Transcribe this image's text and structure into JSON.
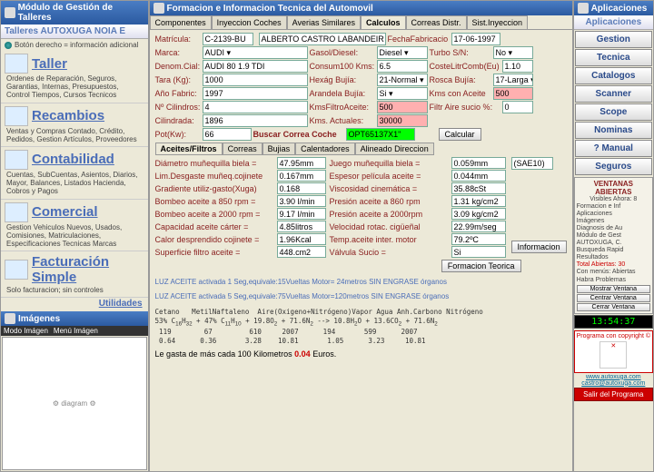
{
  "left": {
    "title": "Módulo de Gestión de Talleres",
    "subhead": "Talleres AUTOXUGA NOIA E",
    "infoLine": "Botón derecho = información adicional",
    "sections": [
      {
        "title": "Taller",
        "desc": "Ordenes de Reparación, Seguros, Garantias, Internas, Presupuestos, Control Tiempos, Cursos Tecnicos"
      },
      {
        "title": "Recambios",
        "desc": "Ventas y Compras Contado, Crédito, Pedidos, Gestion Artículos, Proveedores"
      },
      {
        "title": "Contabilidad",
        "desc": "Cuentas, SubCuentas, Asientos, Diarios, Mayor, Balances, Listados Hacienda, Cobros y Pagos"
      },
      {
        "title": "Comercial",
        "desc": "Gestion Vehiculos Nuevos, Usados, Comisiones, Matriculaciones, Especificaciones Tecnicas Marcas"
      },
      {
        "title": "Facturación Simple",
        "desc": "Solo facturacion; sin controles"
      }
    ],
    "utilidades": "Utilidades",
    "imagenesTitle": "Imágenes",
    "modoImagen": "Modo Imágen",
    "menuImagen": "Menú Imágen"
  },
  "center": {
    "title": "Formacion e Informacion Tecnica del Automovil",
    "tabs": [
      "Componentes",
      "Inyeccion Coches",
      "Averias Similares",
      "Calculos",
      "Correas Distr.",
      "Sist.Inyeccion"
    ],
    "activeTab": 3,
    "fields": {
      "matricula_l": "Matrícula:",
      "matricula": "C-2139-BU",
      "owner": "ALBERTO CASTRO LABANDEIR",
      "fechaFab_l": "FechaFabricacio",
      "fechaFab": "17-06-1997",
      "marca_l": "Marca:",
      "marca": "AUDI",
      "gasol_l": "Gasol/Diesel:",
      "gasol": "Diesel",
      "turbo_l": "Turbo S/N:",
      "turbo": "No",
      "denom_l": "Denom.Cial:",
      "denom": "AUDI 80 1.9 TDI",
      "consum_l": "Consum100 Kms:",
      "consum": "6.5",
      "coste_l": "CosteLitrComb(Eu)",
      "coste": "1.10",
      "tara_l": "Tara (Kg):",
      "tara": "1000",
      "hexag_l": "Hexág Bujía:",
      "hexag": "21-Normal",
      "rosca_l": "Rosca Bujía:",
      "rosca": "17-Larga",
      "ano_l": "Año Fabric:",
      "ano": "1997",
      "arand_l": "Arandela Bujía:",
      "arand": "Si",
      "kmsAc_l": "Kms con Aceite",
      "kmsAc": "500",
      "ncil_l": "Nº Cilindros:",
      "ncil": "4",
      "kmsFilt_l": "KmsFiltroAceite:",
      "kmsFilt": "500",
      "filtAire_l": "Filtr Aire sucio %:",
      "filtAire": "0",
      "cilind_l": "Cilindrada:",
      "cilind": "1896",
      "kmsAct_l": "Kms. Actuales:",
      "kmsAct": "30000",
      "pot_l": "Pot(Kw):",
      "pot": "66",
      "buscar_l": "Buscar Correa Coche",
      "buscar": "OPT65137X1\"",
      "calcular": "Calcular"
    },
    "subTabs": [
      "Aceites/Filtros",
      "Correas",
      "Bujias",
      "Calentadores",
      "Alineado Direccion"
    ],
    "calc": [
      [
        "Diámetro muñequilla biela =",
        "47.95mm",
        "Juego muñequilla biela =",
        "0.059mm"
      ],
      [
        "Lim.Desgaste muñeq.cojinete",
        "0.167mm",
        "Espesor película aceite =",
        "0.044mm"
      ],
      [
        "Gradiente utiliz-gasto(Xuga)",
        "0.168",
        "Viscosidad cinemática =",
        "35.88cSt"
      ],
      [
        "Bombeo aceite a 850 rpm =",
        "3.90 l/min",
        "Presión aceite a 860 rpm",
        "1.31 kg/cm2"
      ],
      [
        "Bombeo aceite a 2000 rpm =",
        "9.17 l/min",
        "Presión aceite a 2000rpm",
        "3.09 kg/cm2"
      ],
      [
        "Capacidad aceite cárter =",
        "4.85litros",
        "Velocidad rotac. cigüeñal",
        "22.99m/seg"
      ],
      [
        "Calor desprendido cojinete =",
        "1.96Kcal",
        "Temp.aceite inter. motor",
        "79.2ºC"
      ],
      [
        "Superficie filtro aceite =",
        "448.cm2",
        "Válvula Sucio =",
        "Si"
      ]
    ],
    "sae": "(SAE10)",
    "informacion": "Informacion",
    "formTeorica": "Formacion Teorica",
    "note1": "LUZ ACEITE activada 1 Seg,equivale:15Vueltas Motor= 24metros SIN ENGRASE órganos",
    "note2": "LUZ ACEITE activada 5 Seg,equivale:75Vueltas Motor=120metros SIN ENGRASE órganos",
    "gastoLine": "Le gasta de más cada 100 Kilometros",
    "gastoVal": "0.04",
    "gastoUnit": "Euros."
  },
  "right": {
    "title": "Aplicaciones",
    "subhead": "Aplicaciones",
    "btns": [
      "Gestion",
      "Tecnica",
      "Catalogos",
      "Scanner",
      "Scope",
      "Nominas",
      "? Manual",
      "Seguros"
    ],
    "ventTitle": "VENTANAS ABIERTAS",
    "ventSub": "Visibles Ahora: 8",
    "ventItems": [
      "Formacion e Inf",
      "Aplicaciones",
      "Imágenes",
      "Diagnosis de Au",
      "Módulo de Gest",
      "AUTOXUGA, C.",
      "Busqueda Rapid",
      "Resultados"
    ],
    "ventTotal": "Total Abiertas: 30",
    "ventCon": "Con menús: Abiertas",
    "ventHab": "Habra Problemas",
    "ventBtns": [
      "Mostrar Ventana",
      "Centrar Ventana",
      "Cerrar Ventana"
    ],
    "clock": "13:54:37",
    "promo": "Programa con copyright ©",
    "url": "www.autoxuga.com",
    "mail": "castro@autoxuga.com",
    "exit": "Salir del Programa"
  }
}
